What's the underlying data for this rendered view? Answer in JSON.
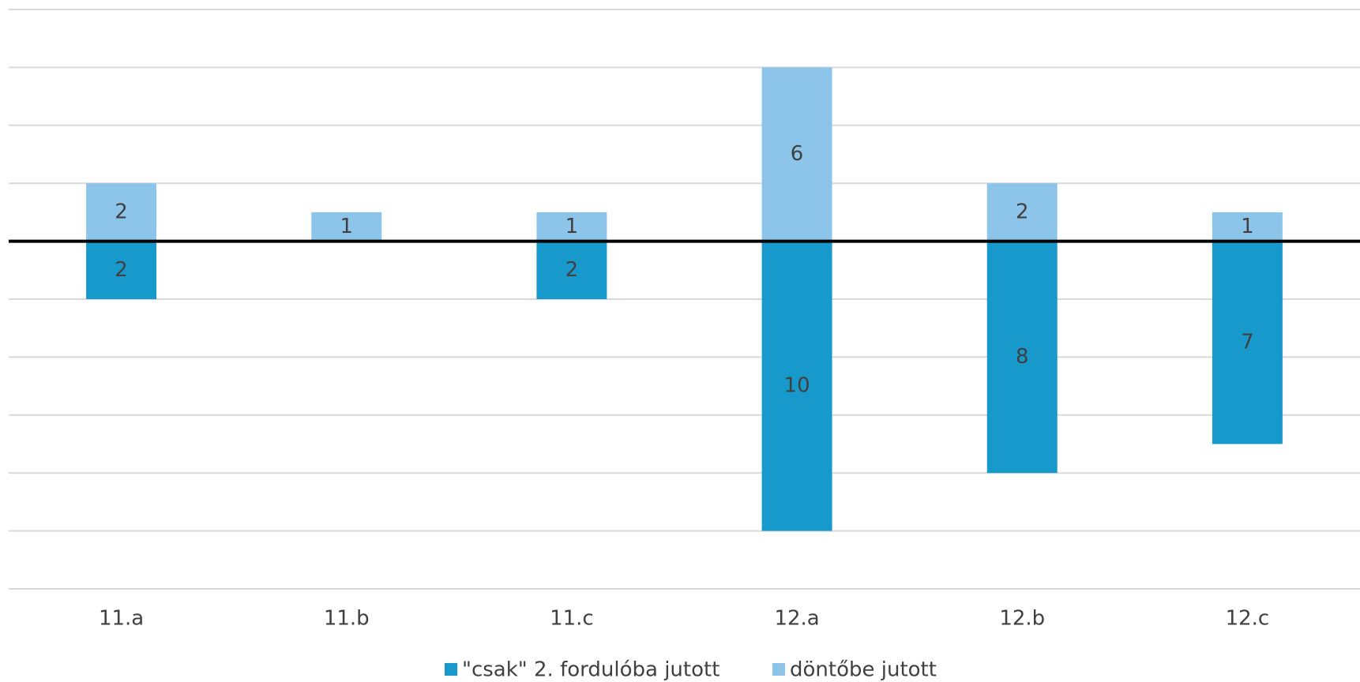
{
  "chart_data": {
    "type": "bar",
    "categories": [
      "11.a",
      "11.b",
      "11.c",
      "12.a",
      "12.b",
      "12.c"
    ],
    "series": [
      {
        "name": "\"csak\" 2. fordulóba jutott",
        "color": "#1899cb",
        "values": [
          -2,
          null,
          -2,
          -10,
          -8,
          -7
        ],
        "value_labels": [
          "2",
          null,
          "2",
          "10",
          "8",
          "7"
        ]
      },
      {
        "name": "döntőbe jutott",
        "color": "#8dc5ea",
        "values": [
          2,
          1,
          1,
          6,
          2,
          1
        ]
      }
    ],
    "ylim": [
      -12,
      8
    ],
    "yticks": [
      -12,
      -10,
      -8,
      -6,
      -4,
      -2,
      0,
      2,
      4,
      6,
      8
    ],
    "grid": true,
    "legend": "bottom"
  }
}
